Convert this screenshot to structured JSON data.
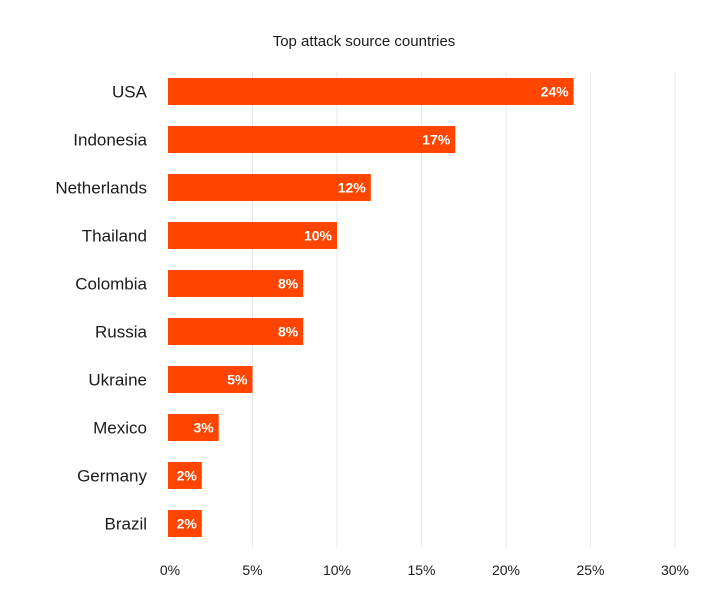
{
  "chart_data": {
    "type": "bar",
    "orientation": "horizontal",
    "title": "Top attack source countries",
    "xlabel": "",
    "ylabel": "",
    "categories": [
      "USA",
      "Indonesia",
      "Netherlands",
      "Thailand",
      "Colombia",
      "Russia",
      "Ukraine",
      "Mexico",
      "Germany",
      "Brazil"
    ],
    "values": [
      24,
      17,
      12,
      10,
      8,
      8,
      5,
      3,
      2,
      2
    ],
    "data_labels": [
      "24%",
      "17%",
      "12%",
      "10%",
      "8%",
      "8%",
      "5%",
      "3%",
      "2%",
      "2%"
    ],
    "xlim": [
      0,
      30
    ],
    "x_ticks": [
      0,
      5,
      10,
      15,
      20,
      25,
      30
    ],
    "x_tick_labels": [
      "0%",
      "5%",
      "10%",
      "15%",
      "20%",
      "25%",
      "30%"
    ],
    "grid": true,
    "legend": "none",
    "bar_color": "#ff4500"
  }
}
